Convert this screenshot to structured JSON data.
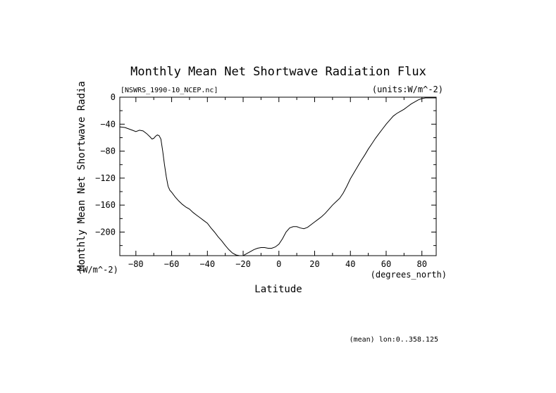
{
  "chart_data": {
    "type": "line",
    "title": "Monthly Mean Net Shortwave Radiation Flux",
    "file_label": "[NSWRS_1990-10_NCEP.nc]",
    "units_label": "(units:W/m^-2)",
    "ylabel": "Monthly Mean Net Shortwave Radia",
    "ylabel_units": "(W/m^-2)",
    "xlabel": "Latitude",
    "xlabel_units": "(degrees_north)",
    "footnote": "(mean) lon:0..358.125",
    "xlim": [
      -89,
      88
    ],
    "ylim": [
      -235,
      0
    ],
    "xticks": [
      -80,
      -60,
      -40,
      -20,
      0,
      20,
      40,
      60,
      80
    ],
    "yticks": [
      0,
      -40,
      -80,
      -120,
      -160,
      -200
    ],
    "grid": false,
    "series": [
      {
        "x": [
          -89,
          -86,
          -84,
          -82,
          -80,
          -78,
          -76,
          -74,
          -72,
          -71,
          -70,
          -69,
          -68,
          -67,
          -66,
          -65,
          -64,
          -63,
          -62,
          -61,
          -60,
          -58,
          -56,
          -54,
          -52,
          -50,
          -48,
          -46,
          -44,
          -42,
          -40,
          -38,
          -36,
          -34,
          -32,
          -30,
          -28,
          -26,
          -24,
          -22,
          -20,
          -18,
          -16,
          -14,
          -12,
          -10,
          -8,
          -6,
          -4,
          -2,
          0,
          2,
          4,
          6,
          8,
          10,
          12,
          14,
          16,
          18,
          20,
          22,
          24,
          26,
          28,
          30,
          32,
          34,
          36,
          38,
          40,
          42,
          44,
          46,
          48,
          50,
          52,
          54,
          56,
          58,
          60,
          62,
          64,
          66,
          68,
          70,
          72,
          74,
          76,
          78,
          80,
          82,
          84,
          86,
          88
        ],
        "y": [
          -44,
          -45,
          -47,
          -49,
          -51,
          -49,
          -50,
          -54,
          -59,
          -62,
          -61,
          -58,
          -56,
          -57,
          -62,
          -80,
          -100,
          -118,
          -132,
          -138,
          -141,
          -148,
          -154,
          -159,
          -163,
          -166,
          -171,
          -175,
          -179,
          -183,
          -187,
          -194,
          -200,
          -207,
          -213,
          -220,
          -226,
          -231,
          -234,
          -235,
          -235,
          -232,
          -229,
          -226,
          -224,
          -223,
          -223,
          -224,
          -224,
          -222,
          -218,
          -210,
          -200,
          -194,
          -192,
          -192,
          -194,
          -195,
          -193,
          -189,
          -185,
          -181,
          -177,
          -172,
          -166,
          -160,
          -155,
          -150,
          -142,
          -132,
          -121,
          -112,
          -103,
          -94,
          -86,
          -77,
          -69,
          -61,
          -54,
          -47,
          -40,
          -34,
          -28,
          -24,
          -21,
          -18,
          -14,
          -10,
          -7,
          -4,
          -2,
          -1,
          -1,
          -1,
          -1
        ]
      }
    ]
  }
}
